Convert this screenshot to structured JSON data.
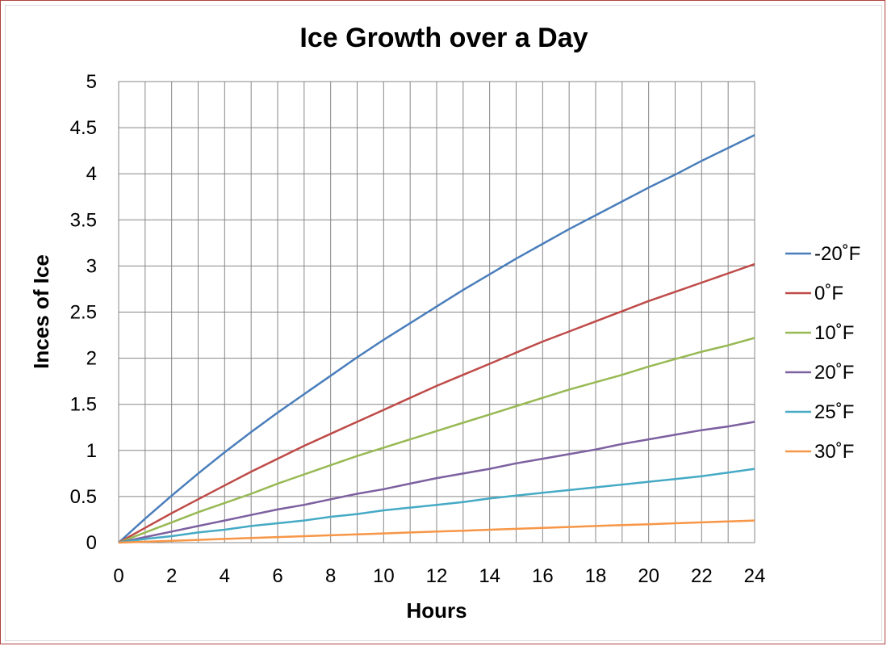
{
  "chart_data": {
    "type": "line",
    "title": "Ice Growth over a Day",
    "xlabel": "Hours",
    "ylabel": "Inces of Ice",
    "xlim": [
      0,
      24
    ],
    "ylim": [
      0,
      5
    ],
    "x_ticks": [
      0,
      2,
      4,
      6,
      8,
      10,
      12,
      14,
      16,
      18,
      20,
      22,
      24
    ],
    "y_ticks": [
      0,
      0.5,
      1,
      1.5,
      2,
      2.5,
      3,
      3.5,
      4,
      4.5,
      5
    ],
    "grid": true,
    "legend_position": "right",
    "x": [
      0,
      1,
      2,
      3,
      4,
      5,
      6,
      7,
      8,
      9,
      10,
      11,
      12,
      13,
      14,
      15,
      16,
      17,
      18,
      19,
      20,
      21,
      22,
      23,
      24
    ],
    "series": [
      {
        "name": "-20˚F",
        "color": "#4a7ebb",
        "values": [
          0,
          0.26,
          0.51,
          0.75,
          0.98,
          1.2,
          1.41,
          1.61,
          1.81,
          2.01,
          2.2,
          2.38,
          2.56,
          2.74,
          2.91,
          3.08,
          3.24,
          3.4,
          3.55,
          3.7,
          3.85,
          3.99,
          4.14,
          4.28,
          4.42
        ]
      },
      {
        "name": "0˚F",
        "color": "#be4b48",
        "values": [
          0,
          0.16,
          0.32,
          0.47,
          0.62,
          0.77,
          0.91,
          1.05,
          1.18,
          1.31,
          1.44,
          1.57,
          1.7,
          1.82,
          1.94,
          2.06,
          2.18,
          2.29,
          2.4,
          2.51,
          2.62,
          2.72,
          2.82,
          2.92,
          3.02
        ]
      },
      {
        "name": "10˚F",
        "color": "#98b954",
        "values": [
          0,
          0.11,
          0.22,
          0.33,
          0.43,
          0.53,
          0.64,
          0.74,
          0.84,
          0.94,
          1.03,
          1.12,
          1.21,
          1.3,
          1.39,
          1.48,
          1.57,
          1.66,
          1.74,
          1.82,
          1.91,
          1.99,
          2.07,
          2.14,
          2.22
        ]
      },
      {
        "name": "20˚F",
        "color": "#7d60a0",
        "values": [
          0,
          0.06,
          0.12,
          0.18,
          0.24,
          0.3,
          0.36,
          0.41,
          0.47,
          0.53,
          0.58,
          0.64,
          0.7,
          0.75,
          0.8,
          0.86,
          0.91,
          0.96,
          1.01,
          1.07,
          1.12,
          1.17,
          1.22,
          1.26,
          1.31
        ]
      },
      {
        "name": "25˚F",
        "color": "#46aac5",
        "values": [
          0,
          0.04,
          0.07,
          0.11,
          0.14,
          0.18,
          0.21,
          0.24,
          0.28,
          0.31,
          0.35,
          0.38,
          0.41,
          0.44,
          0.48,
          0.51,
          0.54,
          0.57,
          0.6,
          0.63,
          0.66,
          0.69,
          0.72,
          0.76,
          0.8
        ]
      },
      {
        "name": "30˚F",
        "color": "#f79646",
        "values": [
          0,
          0.01,
          0.02,
          0.03,
          0.04,
          0.05,
          0.06,
          0.07,
          0.08,
          0.09,
          0.1,
          0.11,
          0.12,
          0.13,
          0.14,
          0.15,
          0.16,
          0.17,
          0.18,
          0.19,
          0.2,
          0.21,
          0.22,
          0.23,
          0.24
        ]
      }
    ]
  },
  "colors": {
    "frame_border": "#b0413e",
    "grid": "#878787"
  }
}
